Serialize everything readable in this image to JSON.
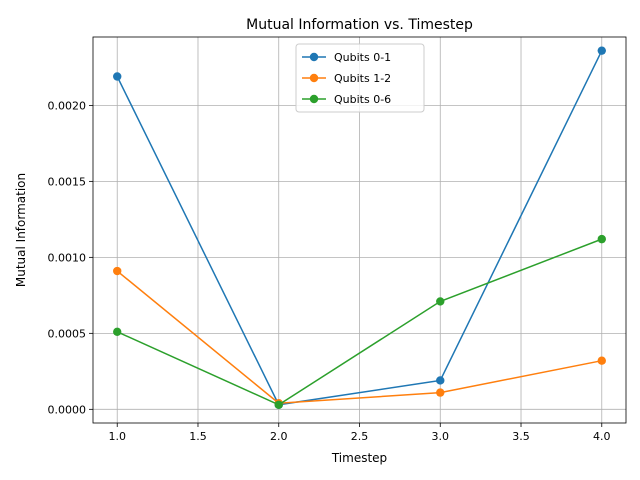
{
  "chart_data": {
    "type": "line",
    "title": "Mutual Information vs. Timestep",
    "xlabel": "Timestep",
    "ylabel": "Mutual Information",
    "x": [
      1.0,
      2.0,
      3.0,
      4.0
    ],
    "xlim": [
      0.85,
      4.15
    ],
    "ylim": [
      -9e-05,
      0.00245
    ],
    "xticks": [
      1.0,
      1.5,
      2.0,
      2.5,
      3.0,
      3.5,
      4.0
    ],
    "xtick_labels": [
      "1.0",
      "1.5",
      "2.0",
      "2.5",
      "3.0",
      "3.5",
      "4.0"
    ],
    "yticks": [
      0.0,
      0.0005,
      0.001,
      0.0015,
      0.002
    ],
    "ytick_labels": [
      "0.0000",
      "0.0005",
      "0.0010",
      "0.0015",
      "0.0020"
    ],
    "grid": true,
    "legend_position": "top-center",
    "series": [
      {
        "name": "Qubits 0-1",
        "color": "#1f77b4",
        "values": [
          0.00219,
          3e-05,
          0.00019,
          0.00236
        ]
      },
      {
        "name": "Qubits 1-2",
        "color": "#ff7f0e",
        "values": [
          0.00091,
          4e-05,
          0.00011,
          0.00032
        ]
      },
      {
        "name": "Qubits 0-6",
        "color": "#2ca02c",
        "values": [
          0.00051,
          3e-05,
          0.00071,
          0.00112
        ]
      }
    ]
  }
}
